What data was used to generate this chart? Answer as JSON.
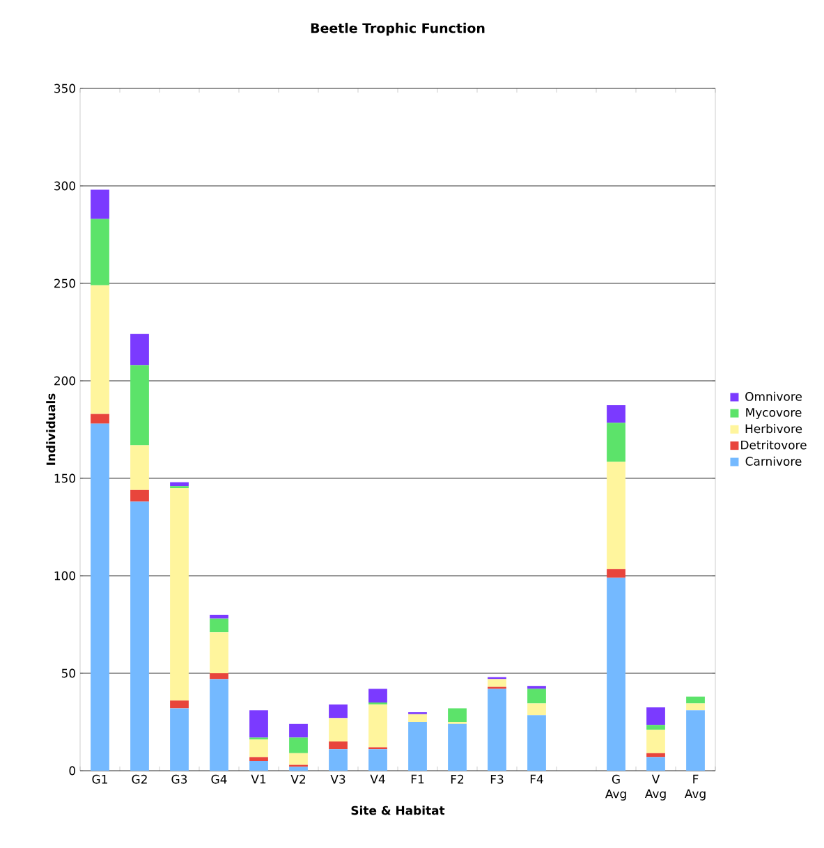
{
  "chart_data": {
    "type": "bar",
    "stacked": true,
    "title": "Beetle Trophic Function",
    "xlabel": "Site & Habitat",
    "ylabel": "Individuals",
    "categories": [
      "G1",
      "G2",
      "G3",
      "G4",
      "V1",
      "V2",
      "V3",
      "V4",
      "F1",
      "F2",
      "F3",
      "F4",
      null,
      "G Avg",
      "V Avg",
      "F Avg"
    ],
    "series": [
      {
        "name": "Carnivore",
        "color": "#74b9ff",
        "values": [
          178,
          138,
          32,
          47,
          5,
          2,
          11,
          11,
          25,
          24,
          42,
          28.5,
          null,
          99,
          7,
          31
        ]
      },
      {
        "name": "Detritovore",
        "color": "#e8453c",
        "values": [
          5,
          6,
          4,
          3,
          2,
          1,
          4,
          1,
          0,
          0,
          1,
          0,
          null,
          4.5,
          2,
          0
        ]
      },
      {
        "name": "Herbivore",
        "color": "#fff59d",
        "values": [
          66,
          23,
          109,
          21,
          9,
          6,
          12,
          22,
          4,
          1,
          4,
          6,
          null,
          55,
          12,
          3.5
        ]
      },
      {
        "name": "Mycovore",
        "color": "#5ce36a",
        "values": [
          34,
          41,
          1,
          7,
          1,
          8,
          0,
          1,
          0,
          7,
          0,
          7.5,
          null,
          20,
          2.5,
          3.5
        ]
      },
      {
        "name": "Omnivore",
        "color": "#7b3aff",
        "values": [
          15,
          16,
          2,
          2,
          14,
          7,
          7,
          7,
          1,
          0,
          1,
          1.5,
          null,
          9,
          9,
          0
        ]
      }
    ],
    "ylim": [
      0,
      350
    ],
    "yticks": [
      0,
      50,
      100,
      150,
      200,
      250,
      300,
      350
    ],
    "grid": "y",
    "legend": "right"
  }
}
